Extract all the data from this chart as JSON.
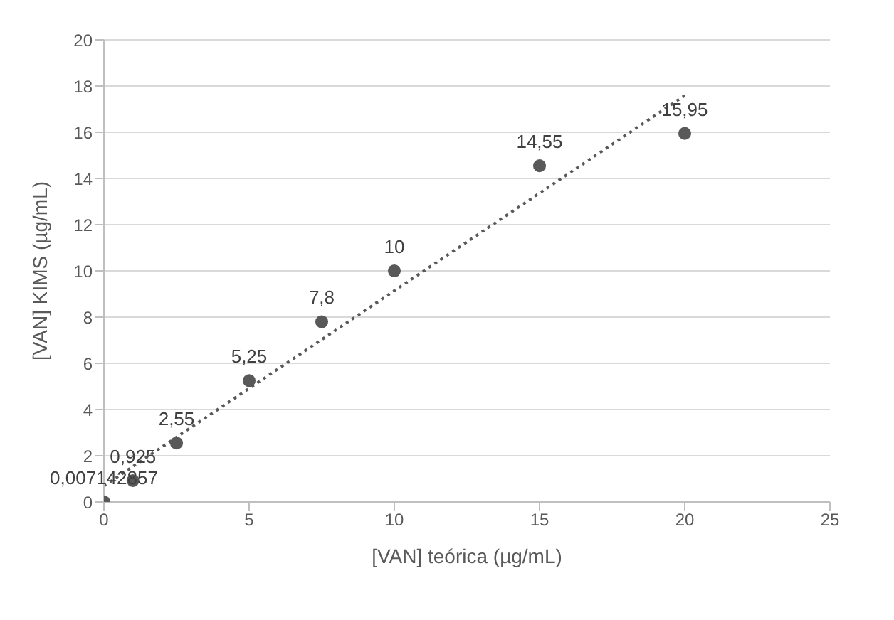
{
  "chart_data": {
    "type": "scatter",
    "xlabel": "[VAN] teórica (µg/mL)",
    "ylabel": "[VAN] KIMS (µg/mL)",
    "x": [
      0,
      1,
      2.5,
      5,
      7.5,
      10,
      15,
      20
    ],
    "series": [
      {
        "color": "#595959",
        "values": [
          0.007142857,
          0.925,
          2.55,
          5.25,
          7.8,
          10,
          14.55,
          15.95
        ],
        "value_labels": [
          "0,007142857",
          "0,925",
          "2,55",
          "5,25",
          "7,8",
          "10",
          "14,55",
          "15,95"
        ],
        "marker": "circle"
      },
      {
        "type": "line",
        "color": "#595959",
        "x": [
          0,
          20
        ],
        "values": [
          0.69,
          17.59
        ],
        "line_style": "dotted",
        "marker": "none"
      }
    ],
    "xlim": [
      0,
      25
    ],
    "xticks": [
      0,
      5,
      10,
      15,
      20,
      25
    ],
    "ylim": [
      0,
      20
    ],
    "yticks": [
      0,
      2,
      4,
      6,
      8,
      10,
      12,
      14,
      16,
      18,
      20
    ],
    "grid": "y",
    "legend": false
  }
}
